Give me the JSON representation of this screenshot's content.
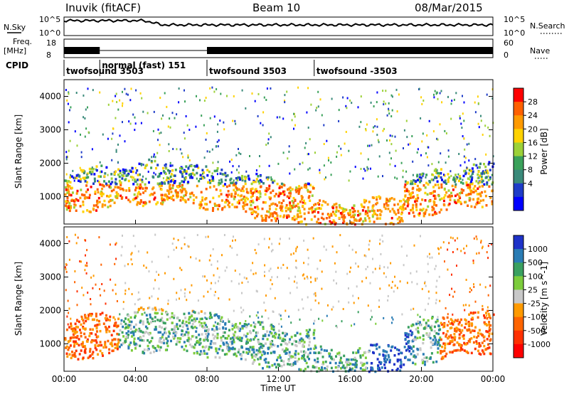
{
  "header": {
    "station": "Inuvik (fitACF)",
    "beam": "Beam 10",
    "date": "08/Mar/2015"
  },
  "top_panels": {
    "nsky_label": "N.Sky",
    "nsearch_label": "N.Search",
    "noise_ticks": [
      "10^5",
      "10^0"
    ],
    "freq_label": "Freq.",
    "freq_unit": "[MHz]",
    "freq_ticks": [
      "18",
      "8"
    ],
    "nave_label": "Nave",
    "nave_ticks": [
      "60",
      "0"
    ],
    "cpid_label": "CPID"
  },
  "cpid_modes": [
    {
      "label": "twofsound 3503",
      "start_hour": 0.0
    },
    {
      "label": "normal (fast) 151",
      "start_hour": 2.0
    },
    {
      "label": "twofsound 3503",
      "start_hour": 8.0
    },
    {
      "label": "twofsound -3503",
      "start_hour": 14.0
    }
  ],
  "chart_data": [
    {
      "type": "heatmap",
      "parameter": "Power",
      "ylabel": "Slant Range [km]",
      "ylim": [
        180,
        4500
      ],
      "yticks": [
        1000,
        2000,
        3000,
        4000
      ],
      "xlim": [
        "00:00",
        "24:00"
      ],
      "colorbar": {
        "label": "Power [dB]",
        "ticks": [
          "28",
          "24",
          "20",
          "16",
          "12",
          "8",
          "4"
        ],
        "colors": [
          "#ff0000",
          "#ff6000",
          "#ff9a00",
          "#ffd200",
          "#9cd138",
          "#3aa15a",
          "#3a8a7a",
          "#1e3cc8",
          "#0000ff"
        ]
      }
    },
    {
      "type": "heatmap",
      "parameter": "Velocity",
      "ylabel": "Slant Range [km]",
      "ylim": [
        180,
        4500
      ],
      "yticks": [
        1000,
        2000,
        3000,
        4000
      ],
      "xlim": [
        "00:00",
        "24:00"
      ],
      "colorbar": {
        "label": "Velocity [m s^-1]",
        "ticks": [
          "1000",
          "500",
          "100",
          "25",
          "-25",
          "-100",
          "-500",
          "-1000"
        ],
        "colors": [
          "#1e32c8",
          "#2a7cb4",
          "#3aa060",
          "#7ccc3c",
          "#c8c8c8",
          "#ff9a00",
          "#ff6400",
          "#ff3000",
          "#ff0000"
        ]
      }
    }
  ],
  "x_axis": {
    "label": "Time UT",
    "ticks": [
      "00:00",
      "04:00",
      "08:00",
      "12:00",
      "16:00",
      "20:00",
      "00:00"
    ]
  }
}
